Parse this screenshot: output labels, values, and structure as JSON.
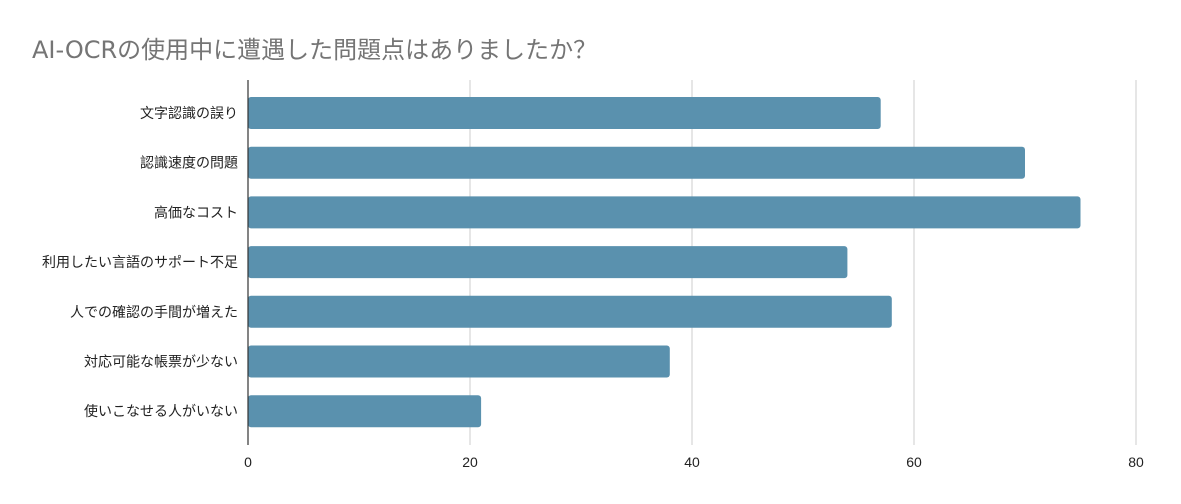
{
  "chart_data": {
    "type": "bar",
    "orientation": "horizontal",
    "title": "AI-OCRの使用中に遭遇した問題点はありましたか？",
    "categories": [
      "文字認識の誤り",
      "認識速度の問題",
      "高価なコスト",
      "利用したい言語のサポート不足",
      "人での確認の手間が増えた",
      "対応可能な帳票が少ない",
      "使いこなせる人がいない"
    ],
    "values": [
      57,
      70,
      75,
      54,
      58,
      38,
      21
    ],
    "xlim": [
      0,
      80
    ],
    "xticks": [
      0,
      20,
      40,
      60,
      80
    ],
    "grid": true,
    "legend": "none",
    "bar_color": "#5a91ae",
    "grid_color": "#cccccc",
    "axis_color": "#333333",
    "title_color": "#757575"
  }
}
